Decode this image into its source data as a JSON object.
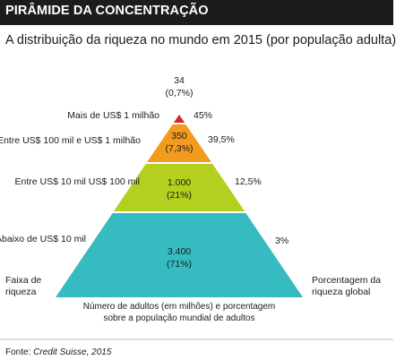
{
  "header": {
    "title": "PIRÂMIDE DA CONCENTRAÇÃO"
  },
  "subtitle": "A distribuição da riqueza no mundo em 2015 (por população adulta)",
  "source": {
    "prefix": "Fonte:",
    "name": "Credit Suisse, 2015"
  },
  "colors": {
    "header_bg": "#1c1c1c",
    "tier_top": "#d9232e",
    "tier_second": "#f39b1e",
    "tier_third": "#b4cf1e",
    "tier_base": "#36bcc0"
  },
  "chart_data": {
    "type": "pyramid",
    "title": "PIRÂMIDE DA CONCENTRAÇÃO",
    "subtitle": "A distribuição da riqueza no mundo em 2015 (por população adulta)",
    "left_axis_label": "Faixa de riqueza",
    "right_axis_label": "Porcentagem da riqueza global",
    "center_label": "Número de adultos (em milhões) e porcentagem sobre a população mundial de adultos",
    "tiers": [
      {
        "range": "Mais de US$ 1 milhão",
        "adults_millions": "34",
        "adults_pct": "(0,7%)",
        "wealth_share": "45%",
        "color": "#d9232e"
      },
      {
        "range": "Entre US$ 100 mil e US$ 1 milhão",
        "adults_millions": "350",
        "adults_pct": "(7,3%)",
        "wealth_share": "39,5%",
        "color": "#f39b1e"
      },
      {
        "range": "Entre US$ 10 mil US$ 100 mil",
        "adults_millions": "1.000",
        "adults_pct": "(21%)",
        "wealth_share": "12,5%",
        "color": "#b4cf1e"
      },
      {
        "range": "Abaixo de US$ 10 mil",
        "adults_millions": "3.400",
        "adults_pct": "(71%)",
        "wealth_share": "3%",
        "color": "#36bcc0"
      }
    ],
    "labels": {
      "left_axis_lines": [
        "Faixa de",
        "riqueza"
      ],
      "right_axis_lines": [
        "Porcentagem da",
        "riqueza global"
      ],
      "center_lines": [
        "Número de adultos (em milhões) e porcentagem",
        "sobre a população mundial de adultos"
      ]
    }
  }
}
